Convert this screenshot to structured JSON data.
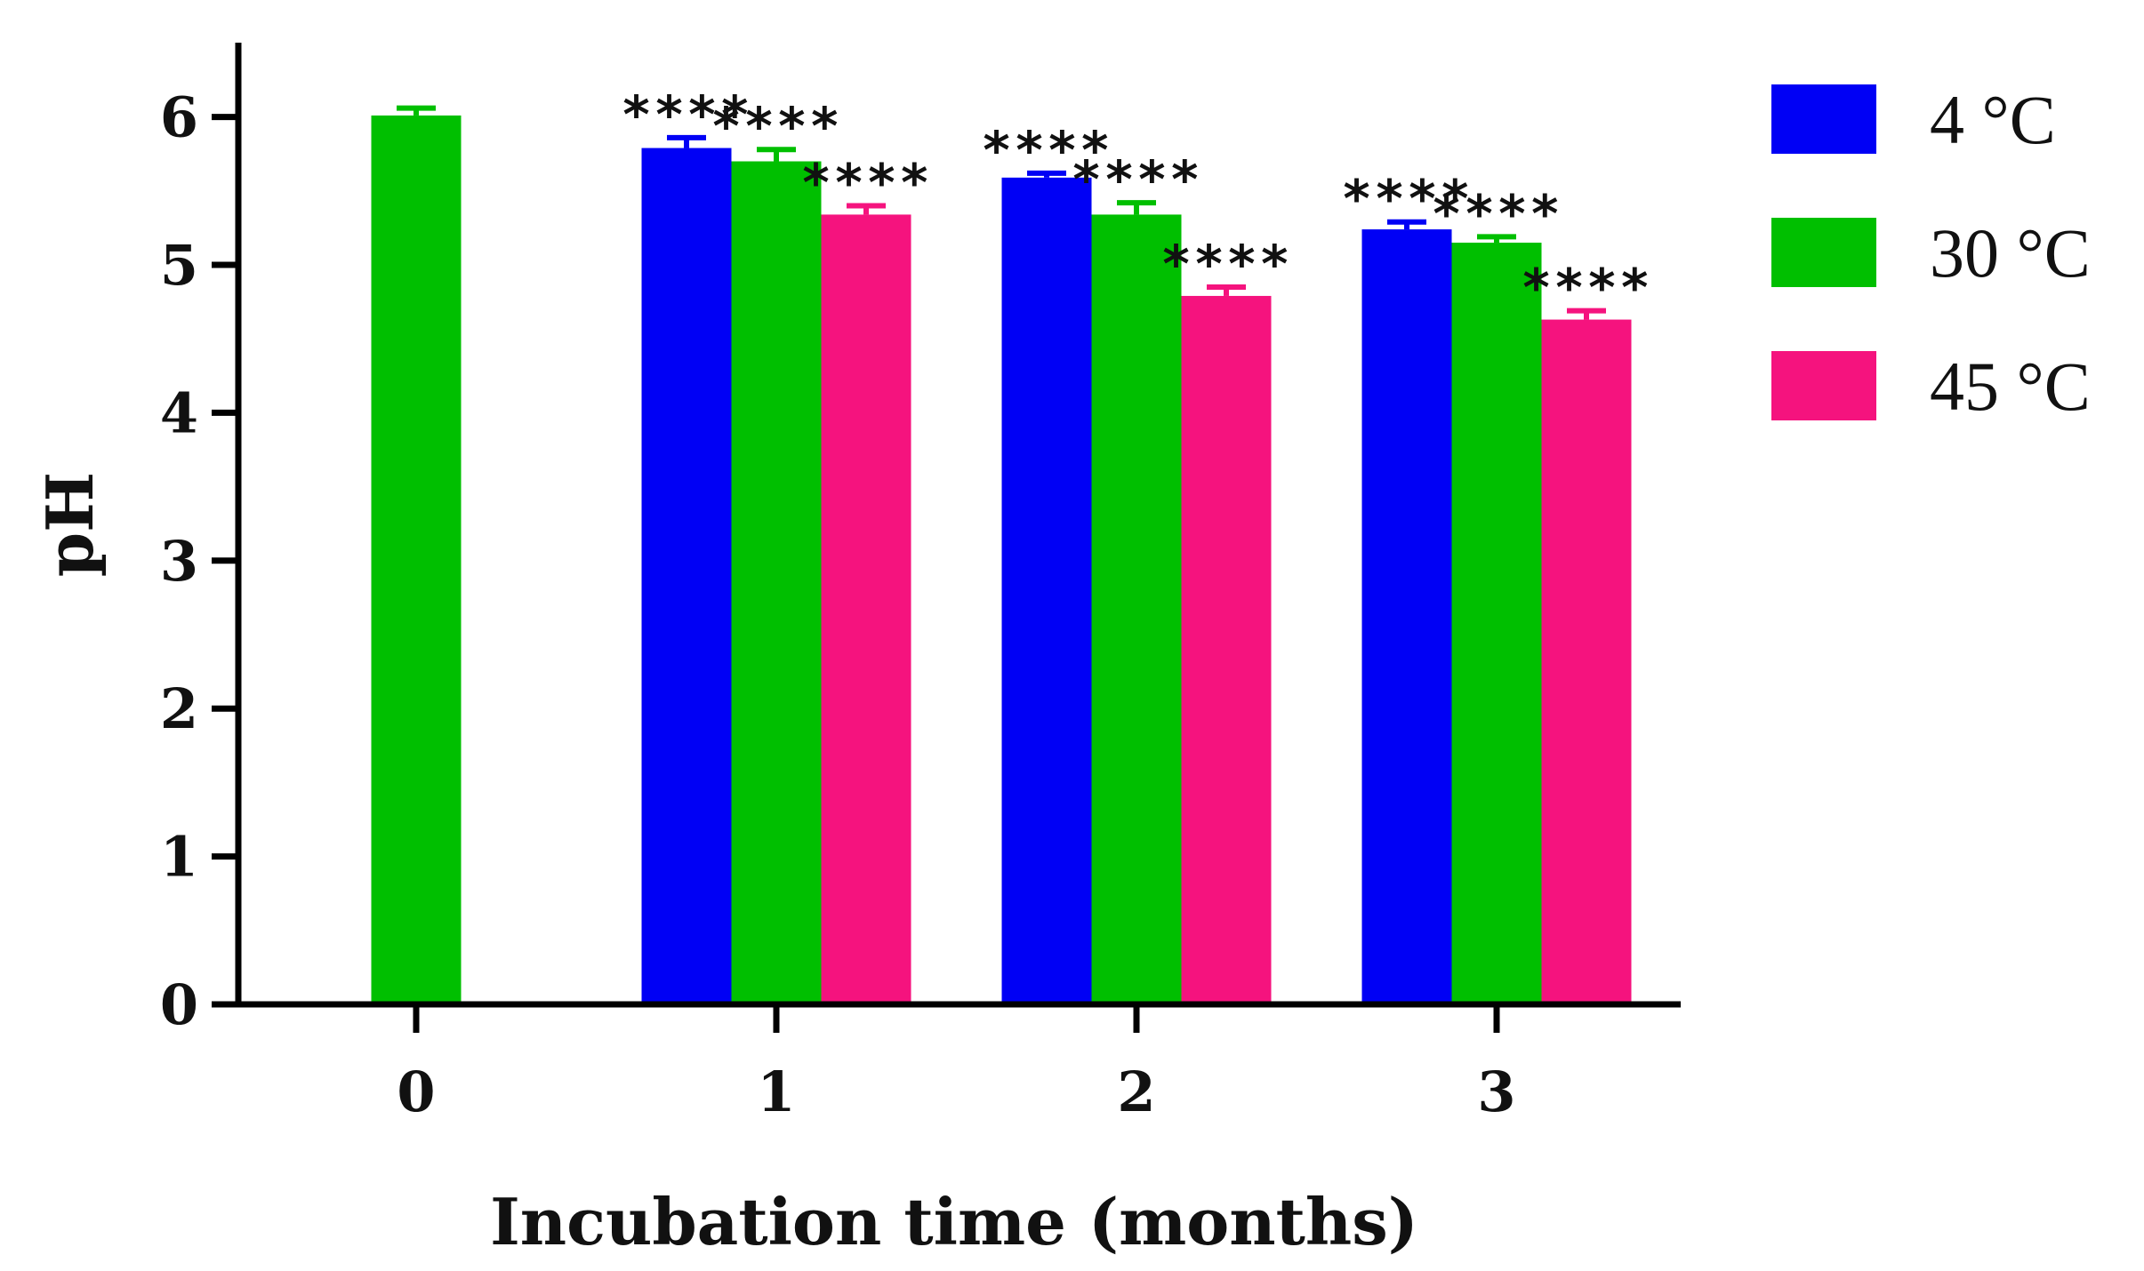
{
  "chart_data": {
    "type": "bar",
    "title": "",
    "xlabel": "Incubation time (months)",
    "ylabel": "pH",
    "categories": [
      "0",
      "1",
      "2",
      "3"
    ],
    "yticks": [
      "0",
      "1",
      "2",
      "3",
      "4",
      "5",
      "6"
    ],
    "ylim": [
      0,
      6.5
    ],
    "grid": false,
    "legend_position": "top-right",
    "series": [
      {
        "name": "4 °C",
        "color": "#0000f5",
        "values": [
          null,
          5.79,
          5.59,
          5.24
        ],
        "errors": [
          null,
          0.07,
          0.03,
          0.05
        ],
        "annotations": [
          "",
          "****",
          "****",
          "****"
        ]
      },
      {
        "name": "30 °C",
        "color": "#00bf00",
        "values": [
          6.01,
          5.7,
          5.34,
          5.15
        ],
        "errors": [
          0.05,
          0.08,
          0.08,
          0.04
        ],
        "annotations": [
          "",
          "****",
          "****",
          "****"
        ]
      },
      {
        "name": "45 °C",
        "color": "#f5137e",
        "values": [
          null,
          5.34,
          4.79,
          4.63
        ],
        "errors": [
          null,
          0.06,
          0.06,
          0.06
        ],
        "annotations": [
          "",
          "****",
          "****",
          "****"
        ]
      }
    ]
  }
}
